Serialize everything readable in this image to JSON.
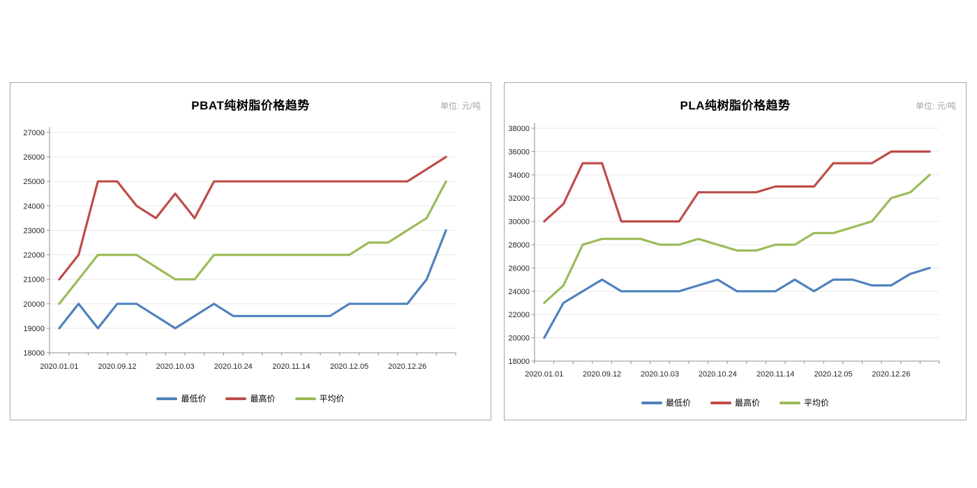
{
  "page": {
    "background": "#ffffff",
    "palette": {
      "min_price": "#4F81BD",
      "max_price": "#BE4B48",
      "avg_price": "#9BBB59",
      "grid": "#e8e8e8",
      "axis": "#8c8c8c",
      "tick_text": "#262626",
      "unit_text": "#a6a6a6",
      "title_text": "#000000",
      "card_border": "#a6a6a6"
    }
  },
  "chart_data": [
    {
      "type": "line",
      "title": "PBAT纯树脂价格趋势",
      "unit_label": "单位: 元/吨",
      "grid": true,
      "legend_position": "bottom",
      "categories": [
        "2020.01.01",
        "",
        "",
        "2020.09.12",
        "",
        "",
        "2020.10.03",
        "",
        "",
        "2020.10.24",
        "",
        "",
        "2020.11.14",
        "",
        "",
        "2020.12.05",
        "",
        "",
        "2020.12.26",
        "",
        ""
      ],
      "x_tick_labels": [
        "2020.01.01",
        "2020.09.12",
        "2020.10.03",
        "2020.10.24",
        "2020.11.14",
        "2020.12.05",
        "2020.12.26"
      ],
      "y_axis": {
        "min": 18000,
        "max": 27000,
        "step": 1000,
        "tick_labels": [
          "27000",
          "26000",
          "25000",
          "24000",
          "23000",
          "22000",
          "21000",
          "20000",
          "19000",
          "18000"
        ]
      },
      "series": [
        {
          "name": "最低价",
          "key": "min-price",
          "color": "#4F81BD",
          "values": [
            19000,
            20000,
            19000,
            20000,
            20000,
            19500,
            19000,
            19500,
            20000,
            19500,
            19500,
            19500,
            19500,
            19500,
            19500,
            20000,
            20000,
            20000,
            20000,
            21000,
            23000
          ]
        },
        {
          "name": "最高价",
          "key": "max-price",
          "color": "#BE4B48",
          "values": [
            21000,
            22000,
            25000,
            25000,
            24000,
            23500,
            24500,
            23500,
            25000,
            25000,
            25000,
            25000,
            25000,
            25000,
            25000,
            25000,
            25000,
            25000,
            25000,
            25500,
            26000
          ]
        },
        {
          "name": "平均价",
          "key": "avg-price",
          "color": "#9BBB59",
          "values": [
            20000,
            21000,
            22000,
            22000,
            22000,
            21500,
            21000,
            21000,
            22000,
            22000,
            22000,
            22000,
            22000,
            22000,
            22000,
            22000,
            22500,
            22500,
            23000,
            23500,
            25000
          ]
        }
      ]
    },
    {
      "type": "line",
      "title": "PLA纯树脂价格趋势",
      "unit_label": "单位: 元/吨",
      "grid": true,
      "legend_position": "bottom",
      "categories": [
        "2020.01.01",
        "",
        "",
        "2020.09.12",
        "",
        "",
        "2020.10.03",
        "",
        "",
        "2020.10.24",
        "",
        "",
        "2020.11.14",
        "",
        "",
        "2020.12.05",
        "",
        "",
        "2020.12.26",
        "",
        ""
      ],
      "x_tick_labels": [
        "2020.01.01",
        "2020.09.12",
        "2020.10.03",
        "2020.10.24",
        "2020.11.14",
        "2020.12.05",
        "2020.12.26"
      ],
      "y_axis": {
        "min": 18000,
        "max": 38000,
        "step": 2000,
        "tick_labels": [
          "38000",
          "36000",
          "34000",
          "32000",
          "30000",
          "28000",
          "26000",
          "24000",
          "22000",
          "20000",
          "18000"
        ]
      },
      "series": [
        {
          "name": "最低价",
          "key": "min-price",
          "color": "#4F81BD",
          "values": [
            20000,
            23000,
            24000,
            25000,
            24000,
            24000,
            24000,
            24000,
            24500,
            25000,
            24000,
            24000,
            24000,
            25000,
            24000,
            25000,
            25000,
            24500,
            24500,
            25500,
            26000
          ]
        },
        {
          "name": "最高价",
          "key": "max-price",
          "color": "#BE4B48",
          "values": [
            30000,
            31500,
            35000,
            35000,
            30000,
            30000,
            30000,
            30000,
            32500,
            32500,
            32500,
            32500,
            33000,
            33000,
            33000,
            35000,
            35000,
            35000,
            36000,
            36000,
            36000
          ]
        },
        {
          "name": "平均价",
          "key": "avg-price",
          "color": "#9BBB59",
          "values": [
            23000,
            24500,
            28000,
            28500,
            28500,
            28500,
            28000,
            28000,
            28500,
            28000,
            27500,
            27500,
            28000,
            28000,
            29000,
            29000,
            29500,
            30000,
            32000,
            32500,
            34000
          ]
        }
      ]
    }
  ]
}
